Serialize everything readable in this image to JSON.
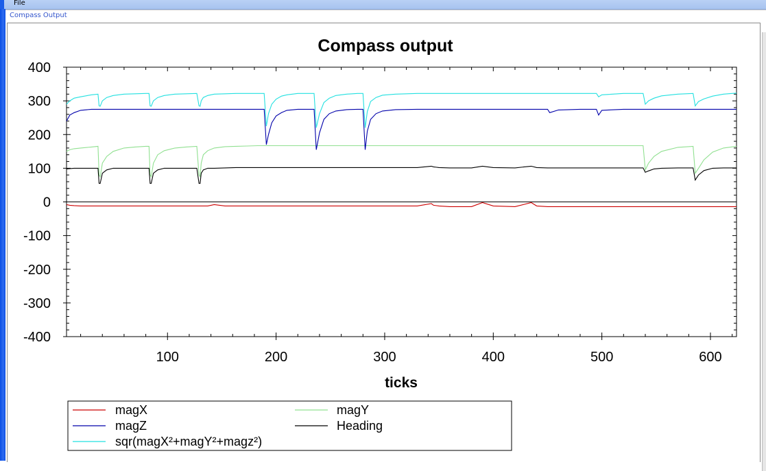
{
  "menubar": {
    "file_label": "File"
  },
  "panel": {
    "caption": "Compass Output"
  },
  "colors": {
    "magX": "#cc0000",
    "magY": "#90e090",
    "magZ": "#0000aa",
    "Heading": "#000000",
    "magnitude": "#22e0e0"
  },
  "chart_data": {
    "type": "line",
    "title": "Compass output",
    "xlabel": "ticks",
    "ylabel": "",
    "xlim": [
      7,
      624
    ],
    "ylim": [
      -400,
      400
    ],
    "x_ticks": [
      100,
      200,
      300,
      400,
      500,
      600
    ],
    "y_ticks": [
      400,
      300,
      200,
      100,
      0,
      -100,
      -200,
      -300,
      -400
    ],
    "grid": false,
    "legend_position": "bottom-left",
    "x": [
      7,
      10,
      14,
      20,
      30,
      36,
      37,
      38,
      40,
      44,
      50,
      60,
      70,
      80,
      83,
      84,
      85,
      87,
      91,
      97,
      107,
      117,
      127,
      129,
      130,
      131,
      133,
      137,
      143,
      153,
      163,
      173,
      183,
      189,
      191,
      193,
      196,
      200,
      205,
      210,
      220,
      230,
      235,
      237,
      240,
      244,
      249,
      255,
      265,
      275,
      280,
      282,
      284,
      287,
      292,
      298,
      310,
      330,
      343,
      345,
      350,
      360,
      380,
      390,
      400,
      420,
      435,
      440,
      450,
      452,
      460,
      480,
      495,
      497,
      500,
      520,
      538,
      540,
      543,
      548,
      555,
      570,
      584,
      586,
      589,
      594,
      602,
      612,
      624
    ],
    "series": [
      {
        "name": "magX",
        "values": [
          -8,
          -10,
          -11,
          -12,
          -12,
          -12,
          -12,
          -12,
          -12,
          -12,
          -12,
          -12,
          -12,
          -12,
          -12,
          -12,
          -12,
          -12,
          -12,
          -12,
          -12,
          -12,
          -12,
          -12,
          -12,
          -12,
          -12,
          -12,
          -8,
          -12,
          -12,
          -12,
          -12,
          -12,
          -12,
          -12,
          -12,
          -12,
          -12,
          -12,
          -12,
          -12,
          -12,
          -12,
          -12,
          -12,
          -12,
          -12,
          -12,
          -12,
          -12,
          -12,
          -12,
          -12,
          -12,
          -12,
          -12,
          -12,
          -5,
          -10,
          -12,
          -14,
          -14,
          -2,
          -12,
          -14,
          -2,
          -12,
          -14,
          -14,
          -14,
          -14,
          -14,
          -14,
          -14,
          -14,
          -14,
          -14,
          -14,
          -14,
          -14,
          -14,
          -14,
          -14,
          -14,
          -14,
          -14,
          -14,
          -14
        ]
      },
      {
        "name": "magY",
        "values": [
          150,
          155,
          158,
          160,
          163,
          165,
          80,
          75,
          115,
          135,
          150,
          160,
          163,
          165,
          165,
          80,
          75,
          115,
          140,
          152,
          160,
          163,
          165,
          80,
          75,
          115,
          140,
          152,
          160,
          164,
          165,
          166,
          167,
          167,
          167,
          167,
          167,
          167,
          167,
          167,
          167,
          167,
          167,
          167,
          167,
          167,
          167,
          167,
          167,
          167,
          167,
          167,
          167,
          167,
          167,
          167,
          167,
          167,
          167,
          167,
          167,
          167,
          167,
          167,
          167,
          167,
          167,
          167,
          167,
          167,
          167,
          167,
          167,
          167,
          167,
          167,
          167,
          95,
          115,
          135,
          150,
          162,
          165,
          85,
          100,
          125,
          148,
          160,
          165
        ]
      },
      {
        "name": "magZ",
        "values": [
          240,
          258,
          265,
          272,
          275,
          275,
          275,
          275,
          275,
          275,
          275,
          275,
          275,
          275,
          275,
          275,
          275,
          275,
          275,
          275,
          275,
          275,
          275,
          275,
          275,
          275,
          275,
          275,
          275,
          275,
          275,
          275,
          275,
          275,
          170,
          200,
          235,
          255,
          265,
          272,
          275,
          275,
          275,
          155,
          205,
          245,
          262,
          270,
          274,
          275,
          275,
          155,
          210,
          245,
          262,
          270,
          274,
          275,
          275,
          275,
          275,
          275,
          275,
          275,
          275,
          275,
          275,
          275,
          275,
          265,
          273,
          275,
          275,
          258,
          272,
          275,
          275,
          275,
          275,
          275,
          275,
          275,
          275,
          275,
          275,
          275,
          275,
          275,
          275
        ]
      },
      {
        "name": "Heading",
        "values": [
          98,
          99,
          100,
          100,
          100,
          100,
          55,
          55,
          85,
          95,
          100,
          100,
          100,
          100,
          100,
          55,
          55,
          85,
          95,
          100,
          100,
          100,
          100,
          55,
          55,
          85,
          95,
          100,
          100,
          101,
          102,
          102,
          102,
          102,
          102,
          102,
          102,
          102,
          102,
          102,
          102,
          102,
          102,
          102,
          102,
          102,
          102,
          102,
          102,
          102,
          102,
          102,
          102,
          102,
          102,
          102,
          102,
          102,
          106,
          104,
          102,
          101,
          101,
          106,
          102,
          101,
          106,
          102,
          101,
          101,
          101,
          101,
          101,
          101,
          101,
          101,
          101,
          88,
          92,
          98,
          100,
          101,
          101,
          65,
          80,
          93,
          100,
          101,
          101
        ]
      },
      {
        "name": "sqr(magX²+magY²+magz²)",
        "values": [
          290,
          300,
          308,
          312,
          318,
          320,
          285,
          284,
          300,
          310,
          316,
          320,
          321,
          322,
          322,
          285,
          284,
          300,
          310,
          316,
          320,
          321,
          322,
          285,
          284,
          300,
          310,
          316,
          320,
          321,
          322,
          322,
          322,
          322,
          225,
          262,
          290,
          305,
          314,
          318,
          322,
          322,
          322,
          220,
          262,
          295,
          308,
          316,
          320,
          322,
          322,
          220,
          268,
          298,
          310,
          317,
          320,
          322,
          322,
          322,
          322,
          322,
          322,
          322,
          322,
          322,
          322,
          322,
          322,
          322,
          322,
          322,
          322,
          312,
          318,
          322,
          322,
          290,
          300,
          308,
          315,
          320,
          322,
          285,
          298,
          306,
          314,
          320,
          323
        ]
      }
    ]
  }
}
